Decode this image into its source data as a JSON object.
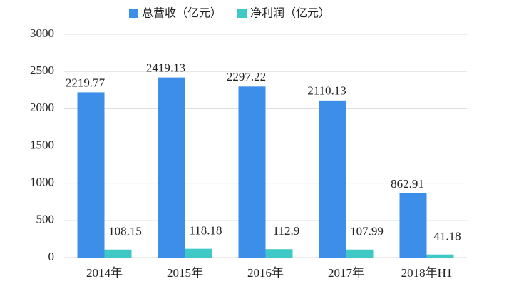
{
  "chart_data": {
    "type": "bar",
    "categories": [
      "2014年",
      "2015年",
      "2016年",
      "2017年",
      "2018年H1"
    ],
    "series": [
      {
        "name": "总营收（亿元）",
        "color": "#3d8ee8",
        "values": [
          2219.77,
          2419.13,
          2297.22,
          2110.13,
          862.91
        ]
      },
      {
        "name": "净利润（亿元）",
        "color": "#3ec8c6",
        "values": [
          108.15,
          118.18,
          112.9,
          107.99,
          41.18
        ]
      }
    ],
    "ylim": [
      0,
      3000
    ],
    "yticks": [
      0,
      500,
      1000,
      1500,
      2000,
      2500,
      3000
    ],
    "grid": true,
    "legend": "top"
  }
}
